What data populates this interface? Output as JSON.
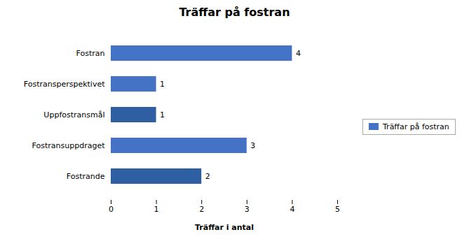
{
  "chart_data": {
    "type": "bar",
    "orientation": "horizontal",
    "title": "Träffar på fostran",
    "categories": [
      "Fostrande",
      "Fostransuppdraget",
      "Uppfostransmål",
      "Fostransperspektivet",
      "Fostran"
    ],
    "series": [
      {
        "name": "Träffar på fostran",
        "color": "#4472C4",
        "values": [
          2,
          3,
          1,
          1,
          4
        ]
      }
    ],
    "colors": [
      "#2E5FA3",
      "#4472C4",
      "#2E5FA3",
      "#4472C4",
      "#4472C4"
    ],
    "xlabel": "Träffar i antal",
    "xlim": [
      0,
      5
    ],
    "xticks": [
      0,
      1,
      2,
      3,
      4,
      5
    ],
    "data_labels": true,
    "grid": false,
    "legend": "right"
  }
}
